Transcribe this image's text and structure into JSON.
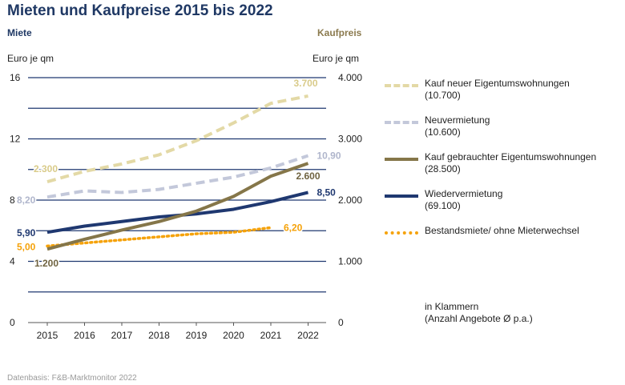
{
  "title": "Mieten und Kaufpreise 2015 bis 2022",
  "left_axis": {
    "heading": "Miete",
    "unit": "Euro je qm",
    "color": "#1f3864"
  },
  "right_axis": {
    "heading": "Kaufpreis",
    "unit": "Euro je qm",
    "color": "#8b7a4e"
  },
  "legend": [
    {
      "label": "Kauf neuer Eigentumswohnungen",
      "count": "(10.700)",
      "color": "#e3d9a6",
      "style": "dashed"
    },
    {
      "label": "Neuvermietung",
      "count": "(10.600)",
      "color": "#c3c8da",
      "style": "dashed"
    },
    {
      "label": "Kauf gebrauchter Eigentumswohnungen",
      "count": "(28.500)",
      "color": "#857649",
      "style": "solid"
    },
    {
      "label": "Wiedervermietung",
      "count": "(69.100)",
      "color": "#1f3870",
      "style": "solid"
    },
    {
      "label": "Bestandsmiete/ ohne Mieterwechsel",
      "count": "",
      "color": "#f5a20a",
      "style": "dotted"
    }
  ],
  "note": {
    "line1": "in Klammern",
    "line2": "(Anzahl Angebote Ø p.a.)"
  },
  "source": "Datenbasis: F&B-Marktmonitor 2022",
  "chart_data": {
    "type": "line",
    "x": [
      "2015",
      "2016",
      "2017",
      "2018",
      "2019",
      "2020",
      "2021",
      "2022"
    ],
    "y_left": {
      "label": "Miete",
      "unit": "Euro je qm",
      "lim": [
        0,
        16
      ],
      "ticks": [
        "0",
        "4",
        "8",
        "12",
        "16"
      ],
      "tick_values": [
        0,
        4,
        8,
        12,
        16
      ],
      "grid_values": [
        2,
        4,
        6,
        8,
        10,
        12,
        14,
        16
      ]
    },
    "y_right": {
      "label": "Kaufpreis",
      "unit": "Euro je qm",
      "lim": [
        0,
        4000
      ],
      "ticks": [
        "0",
        "1.000",
        "2.000",
        "3.000",
        "4.000"
      ],
      "tick_values": [
        0,
        1000,
        2000,
        3000,
        4000
      ]
    },
    "grid": true,
    "legend_position": "right",
    "series": [
      {
        "name": "Kauf neuer Eigentumswohnungen",
        "axis": "right",
        "color": "#e3d9a6",
        "style": "dashed",
        "x": [
          2015,
          2016,
          2017,
          2018,
          2019,
          2020,
          2021,
          2022
        ],
        "values": [
          2300,
          2470,
          2590,
          2740,
          2970,
          3260,
          3580,
          3700
        ],
        "start_label": "2.300",
        "end_label": "3.700"
      },
      {
        "name": "Neuvermietung",
        "axis": "left",
        "color": "#c3c8da",
        "style": "dashed",
        "x": [
          2015,
          2016,
          2017,
          2018,
          2019,
          2020,
          2021,
          2022
        ],
        "values": [
          8.2,
          8.6,
          8.5,
          8.7,
          9.1,
          9.5,
          10.1,
          10.9
        ],
        "start_label": "8,20",
        "end_label": "10,90"
      },
      {
        "name": "Kauf gebrauchter Eigentumswohnungen",
        "axis": "right",
        "color": "#857649",
        "style": "solid",
        "x": [
          2015,
          2016,
          2017,
          2018,
          2019,
          2020,
          2021,
          2022
        ],
        "values": [
          1200,
          1360,
          1510,
          1650,
          1820,
          2060,
          2390,
          2600
        ],
        "start_label": "1.200",
        "end_label": "2.600"
      },
      {
        "name": "Wiedervermietung",
        "axis": "left",
        "color": "#1f3870",
        "style": "solid",
        "x": [
          2015,
          2016,
          2017,
          2018,
          2019,
          2020,
          2021,
          2022
        ],
        "values": [
          5.9,
          6.3,
          6.6,
          6.9,
          7.1,
          7.4,
          7.9,
          8.5
        ],
        "start_label": "5,90",
        "end_label": "8,50"
      },
      {
        "name": "Bestandsmiete/ ohne Mieterwechsel",
        "axis": "left",
        "color": "#f5a20a",
        "style": "dotted",
        "x": [
          2015,
          2016,
          2017,
          2018,
          2019,
          2020,
          2021
        ],
        "values": [
          5.0,
          5.2,
          5.4,
          5.6,
          5.8,
          5.9,
          6.2
        ],
        "start_label": "5,00",
        "end_label": "6,20"
      }
    ]
  }
}
